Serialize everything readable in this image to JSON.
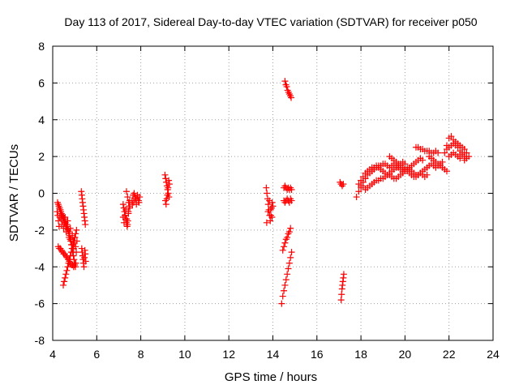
{
  "chart_data": {
    "type": "scatter",
    "title": "Day 113 of 2017, Sidereal Day-to-day VTEC variation (SDTVAR) for receiver p050",
    "xlabel": "GPS time / hours",
    "ylabel": "SDTVAR / TECUs",
    "xlim": [
      4,
      24
    ],
    "ylim": [
      -8,
      8
    ],
    "xticks": [
      4,
      6,
      8,
      10,
      12,
      14,
      16,
      18,
      20,
      22,
      24
    ],
    "yticks": [
      -8,
      -6,
      -4,
      -2,
      0,
      2,
      4,
      6,
      8
    ],
    "grid": true,
    "marker": "plus",
    "marker_color": "#ff0000",
    "series": [
      {
        "name": "p050",
        "segments": [
          {
            "x": [
              4.22,
              4.25,
              4.28,
              4.31,
              4.34,
              4.37,
              4.4,
              4.43,
              4.46,
              4.49,
              4.52,
              4.55,
              4.58,
              4.61,
              4.64,
              4.67,
              4.7,
              4.73,
              4.76,
              4.79,
              4.82,
              4.85,
              4.88,
              4.91,
              4.94,
              4.97,
              5.0,
              5.03
            ],
            "y": [
              -0.5,
              -0.6,
              -0.7,
              -0.8,
              -0.9,
              -1.0,
              -1.1,
              -1.2,
              -1.3,
              -1.3,
              -1.4,
              -1.5,
              -1.6,
              -1.7,
              -1.8,
              -1.9,
              -2.0,
              -2.2,
              -2.3,
              -2.5,
              -2.6,
              -2.8,
              -3.0,
              -3.2,
              -3.4,
              -3.6,
              -3.8,
              -4.0
            ]
          },
          {
            "x": [
              4.2,
              4.23,
              4.26,
              4.29,
              4.32,
              4.35,
              4.38,
              4.41,
              4.44,
              4.47,
              4.5,
              4.53,
              4.56,
              4.59,
              4.62,
              4.65,
              4.68,
              4.71,
              4.74,
              4.77,
              4.8,
              4.83,
              4.86,
              4.89,
              4.92,
              4.95,
              4.98,
              5.01,
              5.04,
              5.07,
              5.1
            ],
            "y": [
              -1.0,
              -1.2,
              -1.5,
              -1.8,
              -1.3,
              -0.9,
              -1.4,
              -1.7,
              -1.2,
              -1.5,
              -1.9,
              -1.6,
              -1.3,
              -1.8,
              -2.1,
              -1.7,
              -1.5,
              -2.0,
              -2.4,
              -2.1,
              -1.9,
              -2.5,
              -2.8,
              -2.3,
              -2.6,
              -3.0,
              -2.7,
              -2.4,
              -2.9,
              -3.2,
              -2.6
            ]
          },
          {
            "x": [
              4.25,
              4.3,
              4.35,
              4.4,
              4.45,
              4.5,
              4.55,
              4.6,
              4.65,
              4.7,
              4.75,
              4.8,
              4.85,
              4.9,
              4.95,
              5.0,
              5.05
            ],
            "y": [
              -2.9,
              -3.0,
              -3.0,
              -3.1,
              -3.2,
              -3.3,
              -3.3,
              -3.4,
              -3.5,
              -3.6,
              -3.7,
              -3.8,
              -3.9,
              -3.9,
              -4.0,
              -3.9,
              -3.8
            ]
          },
          {
            "x": [
              4.48,
              4.52,
              4.56,
              4.6,
              4.64,
              4.68,
              4.72,
              4.76,
              4.8,
              4.84,
              4.88,
              4.92,
              4.96,
              5.0,
              5.04,
              5.08
            ],
            "y": [
              -5.0,
              -4.8,
              -4.6,
              -4.4,
              -4.2,
              -4.0,
              -3.8,
              -3.6,
              -3.4,
              -3.2,
              -3.0,
              -2.8,
              -2.6,
              -2.4,
              -2.2,
              -2.0
            ]
          },
          {
            "x": [
              5.3,
              5.32,
              5.34,
              5.36,
              5.38,
              5.4,
              5.42,
              5.44,
              5.46,
              5.48
            ],
            "y": [
              0.1,
              -0.1,
              -0.3,
              -0.5,
              -0.7,
              -0.9,
              -1.1,
              -1.3,
              -1.5,
              -1.7
            ]
          },
          {
            "x": [
              5.32,
              5.34,
              5.36,
              5.38,
              5.4,
              5.42,
              5.44,
              5.46,
              5.48,
              5.5
            ],
            "y": [
              -3.0,
              -3.2,
              -3.4,
              -3.6,
              -3.8,
              -4.0,
              -3.5,
              -3.1,
              -3.3,
              -3.7
            ]
          },
          {
            "x": [
              7.2,
              7.23,
              7.26,
              7.29,
              7.32,
              7.35,
              7.38,
              7.41,
              7.44,
              7.47,
              7.5,
              7.2,
              7.24,
              7.28,
              7.32,
              7.36,
              7.4,
              7.44
            ],
            "y": [
              -0.6,
              -0.8,
              -1.0,
              -1.2,
              -1.4,
              -1.6,
              -1.8,
              -1.5,
              -1.1,
              -0.7,
              -0.4,
              -1.3,
              -1.6,
              -1.2,
              -0.9,
              -1.4,
              -1.7,
              -1.0
            ]
          },
          {
            "x": [
              7.35,
              7.4,
              7.45,
              7.5
            ],
            "y": [
              0.1,
              -0.2,
              -0.5,
              -0.8
            ]
          },
          {
            "x": [
              7.6,
              7.65,
              7.7,
              7.75,
              7.8,
              7.85,
              7.9,
              7.95,
              7.62,
              7.68,
              7.74,
              7.8,
              7.86,
              7.92
            ],
            "y": [
              -0.4,
              -0.1,
              0.0,
              -0.2,
              -0.3,
              -0.1,
              -0.4,
              -0.2,
              -0.6,
              -0.5,
              -0.3,
              -0.6,
              -0.2,
              -0.5
            ]
          },
          {
            "x": [
              9.1,
              9.13,
              9.16,
              9.19,
              9.22,
              9.25,
              9.28,
              9.12,
              9.15,
              9.18,
              9.21,
              9.24,
              9.27,
              9.3
            ],
            "y": [
              1.0,
              0.8,
              0.6,
              0.4,
              0.2,
              0.0,
              -0.2,
              -0.4,
              -0.6,
              -0.3,
              -0.1,
              0.3,
              0.7,
              0.5
            ]
          },
          {
            "x": [
              13.7,
              13.73,
              13.76,
              13.79,
              13.82,
              13.85,
              13.88,
              13.91,
              13.94,
              13.97,
              14.0,
              13.72,
              13.78,
              13.84,
              13.9,
              13.96
            ],
            "y": [
              0.3,
              0.0,
              -0.3,
              -0.6,
              -0.9,
              -1.2,
              -1.5,
              -1.2,
              -0.8,
              -0.5,
              -0.7,
              -1.6,
              -1.0,
              -0.4,
              -0.9,
              -1.3
            ]
          },
          {
            "x": [
              14.5,
              14.55,
              14.6,
              14.65,
              14.7,
              14.75,
              14.8,
              14.85
            ],
            "y": [
              0.3,
              0.4,
              0.3,
              0.2,
              0.3,
              0.2,
              0.3,
              0.2
            ]
          },
          {
            "x": [
              14.5,
              14.55,
              14.6,
              14.65,
              14.7,
              14.75,
              14.8,
              14.85
            ],
            "y": [
              -0.4,
              -0.5,
              -0.4,
              -0.3,
              -0.4,
              -0.5,
              -0.3,
              -0.4
            ]
          },
          {
            "x": [
              14.55,
              14.59,
              14.63,
              14.67,
              14.71,
              14.75,
              14.79,
              14.83
            ],
            "y": [
              6.1,
              5.9,
              5.8,
              5.6,
              5.5,
              5.4,
              5.3,
              5.2
            ]
          },
          {
            "x": [
              14.45,
              14.5,
              14.55,
              14.6,
              14.65,
              14.7,
              14.75,
              14.8
            ],
            "y": [
              -3.1,
              -2.9,
              -2.7,
              -2.5,
              -2.4,
              -2.2,
              -2.1,
              -1.9
            ]
          },
          {
            "x": [
              14.4,
              14.45,
              14.5,
              14.55,
              14.6,
              14.65,
              14.7,
              14.75,
              14.8,
              14.85
            ],
            "y": [
              -6.0,
              -5.6,
              -5.3,
              -5.0,
              -4.7,
              -4.4,
              -4.1,
              -3.8,
              -3.5,
              -3.2
            ]
          },
          {
            "x": [
              17.1,
              17.12,
              17.14,
              17.16,
              17.18,
              17.2,
              17.22
            ],
            "y": [
              -5.8,
              -5.5,
              -5.2,
              -5.0,
              -4.8,
              -4.6,
              -4.4
            ]
          },
          {
            "x": [
              17.05,
              17.1,
              17.15,
              17.2
            ],
            "y": [
              0.6,
              0.5,
              0.4,
              0.5
            ]
          },
          {
            "x": [
              17.8,
              17.9,
              18.0,
              18.1,
              18.2,
              18.3,
              18.4,
              18.5,
              18.6,
              18.7,
              18.8,
              18.9,
              19.0,
              19.1,
              19.2,
              19.3,
              19.4,
              19.5,
              19.6,
              19.7,
              19.8,
              19.9,
              20.0,
              20.1,
              20.2,
              20.3,
              20.4,
              20.5,
              20.6,
              20.7,
              20.8,
              20.9,
              21.0
            ],
            "y": [
              -0.2,
              0.1,
              0.4,
              0.6,
              0.8,
              1.0,
              1.1,
              1.2,
              1.3,
              1.4,
              1.5,
              1.5,
              1.6,
              1.6,
              1.5,
              1.4,
              1.5,
              1.6,
              1.5,
              1.4,
              1.3,
              1.2,
              1.3,
              1.4,
              1.3,
              1.2,
              1.1,
              1.0,
              1.0,
              1.1,
              1.0,
              0.9,
              1.0
            ]
          },
          {
            "x": [
              17.9,
              18.0,
              18.1,
              18.2,
              18.3,
              18.4,
              18.5,
              18.6,
              18.7,
              18.8,
              18.9,
              19.0,
              19.1,
              19.2,
              19.3,
              19.4,
              19.5,
              19.6,
              19.7,
              19.8,
              19.9,
              20.0,
              20.1,
              20.2,
              20.3,
              20.4,
              20.5,
              20.6,
              20.7,
              20.8
            ],
            "y": [
              0.5,
              0.7,
              0.9,
              1.1,
              1.2,
              1.3,
              1.4,
              1.4,
              1.5,
              1.4,
              1.3,
              1.2,
              1.1,
              1.0,
              1.0,
              0.9,
              0.8,
              0.8,
              0.9,
              1.0,
              1.1,
              1.2,
              1.3,
              1.4,
              1.5,
              1.6,
              1.7,
              1.8,
              1.9,
              1.8
            ]
          },
          {
            "x": [
              18.0,
              18.1,
              18.2,
              18.3,
              18.4,
              18.5,
              18.6,
              18.7,
              18.8,
              18.9,
              19.0,
              19.1,
              19.2,
              19.3,
              19.4,
              19.5,
              19.6,
              19.7,
              19.8,
              19.9,
              20.0
            ],
            "y": [
              0.3,
              0.4,
              0.2,
              0.3,
              0.4,
              0.5,
              0.6,
              0.7,
              0.7,
              0.8,
              0.8,
              0.9,
              1.0,
              1.1,
              1.2,
              1.3,
              1.4,
              1.5,
              1.6,
              1.7,
              1.6
            ]
          },
          {
            "x": [
              19.3,
              19.4,
              19.5,
              19.6,
              19.7,
              19.8,
              19.9,
              20.0,
              20.1,
              20.2,
              20.3,
              20.4,
              20.5,
              20.6,
              20.7,
              20.8,
              20.9,
              21.0,
              21.1,
              21.2,
              21.3,
              21.4,
              21.5,
              21.6,
              21.7
            ],
            "y": [
              2.0,
              1.9,
              1.8,
              1.7,
              1.6,
              1.5,
              1.4,
              1.3,
              1.2,
              1.1,
              1.0,
              0.9,
              0.9,
              1.0,
              1.1,
              1.2,
              1.3,
              1.4,
              1.5,
              1.6,
              1.5,
              1.4,
              1.5,
              1.6,
              1.7
            ]
          },
          {
            "x": [
              20.5,
              20.6,
              20.7,
              20.8,
              20.9,
              21.0,
              21.1,
              21.2,
              21.3,
              21.4,
              21.5
            ],
            "y": [
              2.5,
              2.5,
              2.4,
              2.4,
              2.3,
              2.3,
              2.3,
              2.2,
              2.2,
              2.3,
              2.2
            ]
          },
          {
            "x": [
              21.1,
              21.2,
              21.3,
              21.4,
              21.5,
              21.6,
              21.7,
              21.8,
              21.9
            ],
            "y": [
              2.0,
              1.9,
              1.8,
              1.7,
              1.6,
              1.5,
              1.4,
              1.3,
              1.2
            ]
          },
          {
            "x": [
              21.8,
              21.9,
              22.0,
              22.1,
              22.2,
              22.3,
              22.4,
              22.5,
              22.6,
              22.7,
              22.8,
              22.9,
              21.9,
              22.0,
              22.1,
              22.2,
              22.3,
              22.4,
              22.5,
              22.6,
              22.7,
              22.8,
              22.0,
              22.1,
              22.2,
              22.3,
              22.4,
              22.5,
              22.6,
              22.7
            ],
            "y": [
              2.2,
              2.6,
              3.0,
              3.1,
              2.9,
              2.8,
              2.7,
              2.6,
              2.5,
              2.4,
              2.2,
              2.0,
              2.4,
              2.5,
              2.6,
              2.7,
              2.6,
              2.5,
              2.3,
              2.2,
              2.0,
              1.9,
              2.0,
              2.1,
              2.2,
              2.1,
              2.0,
              1.9,
              2.1,
              1.8
            ]
          }
        ]
      }
    ]
  }
}
